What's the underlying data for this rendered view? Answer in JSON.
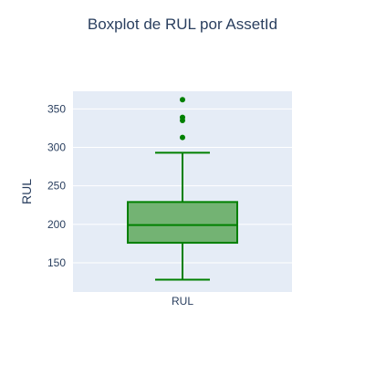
{
  "chart_data": {
    "type": "box",
    "title": "Boxplot de RUL por AssetId",
    "xlabel": "",
    "ylabel": "RUL",
    "categories": [
      "RUL"
    ],
    "ylim": [
      112,
      373
    ],
    "yticks": [
      150,
      200,
      250,
      300,
      350
    ],
    "grid": true,
    "colors": {
      "plot_background": "#e5ecf6",
      "grid": "#ffffff",
      "box_line": "#008000",
      "box_fill": "#73b373",
      "outlier": "#008000",
      "text": "#2a3f5f"
    },
    "series": [
      {
        "category": "RUL",
        "min": 128,
        "q1": 176,
        "median": 199,
        "q3": 229,
        "max": 293,
        "outliers": [
          313,
          335,
          339,
          362
        ]
      }
    ]
  }
}
